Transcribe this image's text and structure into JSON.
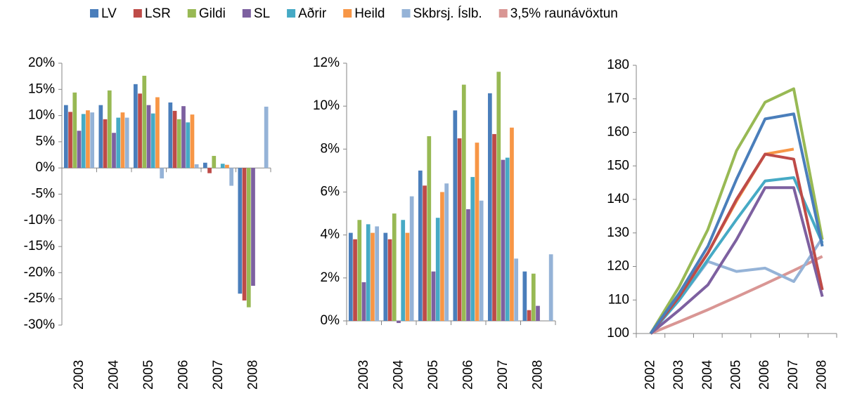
{
  "chart_data": [
    {
      "type": "bar",
      "categories": [
        "2003",
        "2004",
        "2005",
        "2006",
        "2007",
        "2008"
      ],
      "ylim": [
        -30,
        20
      ],
      "yticks": [
        {
          "value": -30,
          "label": "-30%"
        },
        {
          "value": -25,
          "label": "-25%"
        },
        {
          "value": -20,
          "label": "-20%"
        },
        {
          "value": -15,
          "label": "-15%"
        },
        {
          "value": -10,
          "label": "-10%"
        },
        {
          "value": -5,
          "label": "-5%"
        },
        {
          "value": 0,
          "label": "0%"
        },
        {
          "value": 5,
          "label": "5%"
        },
        {
          "value": 10,
          "label": "10%"
        },
        {
          "value": 15,
          "label": "15%"
        },
        {
          "value": 20,
          "label": "20%"
        }
      ],
      "series": [
        {
          "name": "LV",
          "color": "#4a7ebb",
          "values": [
            12,
            12,
            16,
            12.5,
            1,
            -24
          ]
        },
        {
          "name": "LSR",
          "color": "#be4b48",
          "values": [
            10.7,
            9.3,
            14.2,
            10.9,
            -1,
            -25.3
          ]
        },
        {
          "name": "Gildi",
          "color": "#98b954",
          "values": [
            14.4,
            14.8,
            17.6,
            9.3,
            2.3,
            -26.6
          ]
        },
        {
          "name": "SL",
          "color": "#7d60a0",
          "values": [
            7.1,
            6.7,
            12,
            11.8,
            null,
            -22.5
          ]
        },
        {
          "name": "Aðrir",
          "color": "#46aac5",
          "values": [
            10.3,
            9.6,
            10.4,
            8.7,
            0.8,
            null
          ]
        },
        {
          "name": "Heild",
          "color": "#f79646",
          "values": [
            11,
            10.6,
            13.5,
            10.2,
            0.6,
            null
          ]
        },
        {
          "name": "Skbrsj. Íslb.",
          "color": "#95b3d7",
          "values": [
            10.6,
            9.6,
            -2,
            0.7,
            -3.4,
            11.7
          ]
        }
      ]
    },
    {
      "type": "bar",
      "categories": [
        "2003",
        "2004",
        "2005",
        "2006",
        "2007",
        "2008"
      ],
      "ylim": [
        0,
        12
      ],
      "yticks": [
        {
          "value": 0,
          "label": "0%"
        },
        {
          "value": 2,
          "label": "2%"
        },
        {
          "value": 4,
          "label": "4%"
        },
        {
          "value": 6,
          "label": "6%"
        },
        {
          "value": 8,
          "label": "8%"
        },
        {
          "value": 10,
          "label": "10%"
        },
        {
          "value": 12,
          "label": "12%"
        }
      ],
      "series": [
        {
          "name": "LV",
          "color": "#4a7ebb",
          "values": [
            4.1,
            4.1,
            7.0,
            9.8,
            10.6,
            2.3
          ]
        },
        {
          "name": "LSR",
          "color": "#be4b48",
          "values": [
            3.8,
            3.8,
            6.3,
            8.5,
            8.7,
            0.5
          ]
        },
        {
          "name": "Gildi",
          "color": "#98b954",
          "values": [
            4.7,
            5.0,
            8.6,
            11.0,
            11.6,
            2.2
          ]
        },
        {
          "name": "SL",
          "color": "#7d60a0",
          "values": [
            1.8,
            -0.1,
            2.3,
            5.2,
            7.5,
            0.7
          ]
        },
        {
          "name": "Aðrir",
          "color": "#46aac5",
          "values": [
            4.5,
            4.7,
            4.8,
            6.7,
            7.6,
            null
          ]
        },
        {
          "name": "Heild",
          "color": "#f79646",
          "values": [
            4.1,
            4.1,
            6.0,
            8.3,
            9.0,
            null
          ]
        },
        {
          "name": "Skbrsj. Íslb.",
          "color": "#95b3d7",
          "values": [
            4.4,
            5.8,
            6.4,
            5.6,
            2.9,
            3.1
          ]
        }
      ]
    },
    {
      "type": "line",
      "categories": [
        "2002",
        "2003",
        "2004",
        "2005",
        "2006",
        "2007",
        "2008"
      ],
      "ylim": [
        100,
        180
      ],
      "yticks": [
        100,
        110,
        120,
        130,
        140,
        150,
        160,
        170,
        180
      ],
      "series": [
        {
          "name": "LV",
          "color": "#4a7ebb",
          "values": [
            100,
            112,
            126,
            146,
            164,
            165.5,
            126
          ]
        },
        {
          "name": "LSR",
          "color": "#be4b48",
          "values": [
            100,
            111,
            124,
            140,
            153.5,
            152,
            113
          ]
        },
        {
          "name": "Gildi",
          "color": "#98b954",
          "values": [
            100,
            114,
            131,
            154.5,
            169,
            173,
            128
          ]
        },
        {
          "name": "SL",
          "color": "#7d60a0",
          "values": [
            100,
            107,
            114.5,
            128,
            143.5,
            143.5,
            111
          ]
        },
        {
          "name": "Aðrir",
          "color": "#46aac5",
          "values": [
            100,
            110,
            122,
            134,
            145.5,
            146.5,
            127
          ]
        },
        {
          "name": "Heild",
          "color": "#f79646",
          "values": [
            100,
            111,
            124,
            139.5,
            153.5,
            155,
            null
          ]
        },
        {
          "name": "Skbrsj. Íslb.",
          "color": "#95b3d7",
          "values": [
            100,
            110,
            121.5,
            118.5,
            119.5,
            115.5,
            128.5
          ]
        },
        {
          "name": "3,5% raunávöxtun",
          "color": "#d99694",
          "values": [
            100,
            103.5,
            107.1,
            110.9,
            114.8,
            118.8,
            123
          ]
        }
      ]
    }
  ]
}
